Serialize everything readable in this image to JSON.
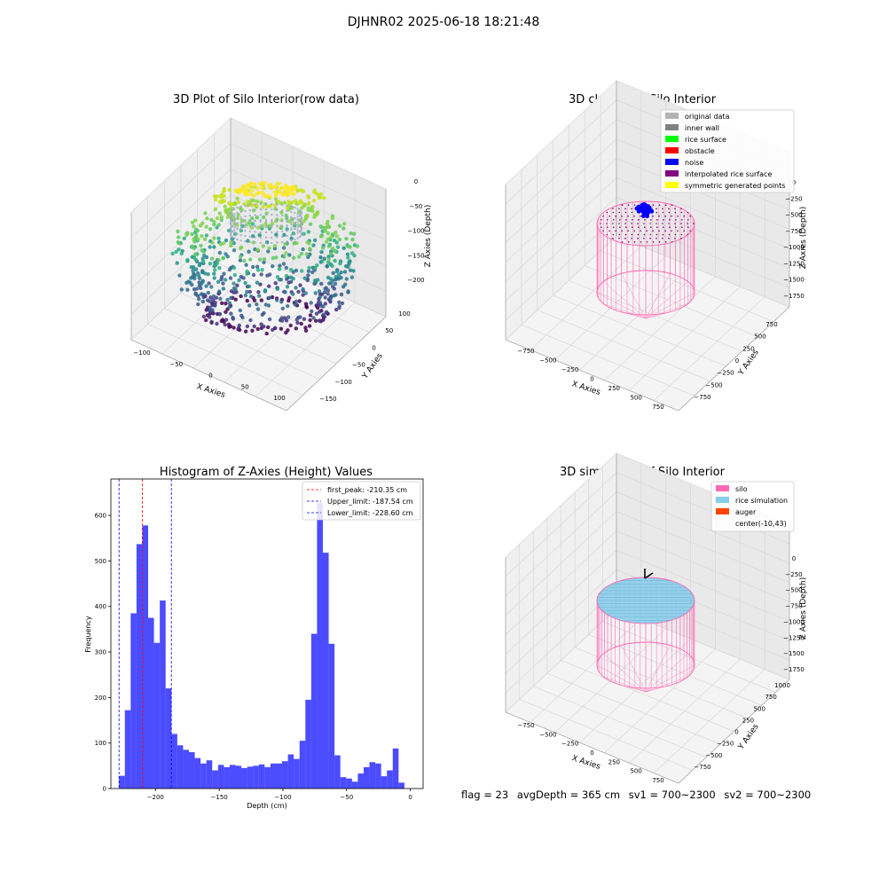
{
  "suptitle": "DJHNR02 2025-06-18 18:21:48",
  "panel1": {
    "title": "3D Plot of Silo Interior(row data)",
    "xlabel": "X Axies",
    "ylabel": "Y Axies",
    "zlabel": "Z Axies (Depth)",
    "xticks": [
      "−100",
      "−50",
      "0",
      "50",
      "100"
    ],
    "yticks": [
      "100",
      "50",
      "0",
      "−50",
      "−100",
      "−150"
    ],
    "zticks": [
      "0",
      "−50",
      "−100",
      "−150",
      "−200"
    ]
  },
  "panel2": {
    "title": "3D classify of Silo Interior",
    "xlabel": "X Axies",
    "ylabel": "Y Axies",
    "zlabel": "Z Axies (Depth)",
    "xticks": [
      "−750",
      "−500",
      "−250",
      "0",
      "250",
      "500",
      "750"
    ],
    "yticks": [
      "750",
      "500",
      "250",
      "0",
      "−250",
      "−500",
      "−750"
    ],
    "zticks": [
      "0",
      "−250",
      "−500",
      "−750",
      "−1000",
      "−1250",
      "−1500",
      "−1750"
    ],
    "legend": [
      {
        "label": "original data",
        "color": "#b3b3b3"
      },
      {
        "label": "inner wall",
        "color": "#808080"
      },
      {
        "label": "rice surface",
        "color": "#00ff00"
      },
      {
        "label": "obstacle",
        "color": "#ff0000"
      },
      {
        "label": "noise",
        "color": "#0000ff"
      },
      {
        "label": "interpolated rice surface",
        "color": "#800080"
      },
      {
        "label": "symmetric generated points",
        "color": "#ffff00"
      }
    ]
  },
  "panel3": {
    "title": "Histogram of Z-Axies (Height) Values",
    "xlabel": "Depth (cm)",
    "ylabel": "Frequency",
    "legend": [
      {
        "label": "first_peak: -210.35 cm",
        "color": "#ff0000"
      },
      {
        "label": "Upper_limit: -187.54 cm",
        "color": "#0000ff"
      },
      {
        "label": "Lower_limit: -228.60 cm",
        "color": "#0000ff"
      }
    ]
  },
  "panel4": {
    "title": "3D simulation of Silo Interior",
    "xlabel": "X Axies",
    "ylabel": "Y Axies",
    "zlabel": "Z Axies (Depth)",
    "xticks": [
      "−750",
      "−500",
      "−250",
      "0",
      "250",
      "500",
      "750"
    ],
    "yticks": [
      "1000",
      "750",
      "500",
      "250",
      "0",
      "−250",
      "−500",
      "−750"
    ],
    "zticks": [
      "0",
      "−250",
      "−500",
      "−750",
      "−1000",
      "−1250",
      "−1500",
      "−1750"
    ],
    "legend": [
      {
        "label": "silo",
        "color": "#ff69b4"
      },
      {
        "label": "rice simulation",
        "color": "#87ceeb"
      },
      {
        "label": "auger",
        "color": "#ff4500"
      },
      {
        "label": "center(-10,43)",
        "color": ""
      }
    ]
  },
  "footer": {
    "flag": "flag = 23",
    "avg_depth": "avgDepth = 365 cm",
    "sv1": "sv1 = 700~2300",
    "sv2": "sv2 = 700~2300"
  },
  "chart_data": [
    {
      "type": "scatter",
      "title": "3D Plot of Silo Interior(row data)",
      "xlabel": "X Axies",
      "ylabel": "Y Axies",
      "zlabel": "Z Axies (Depth)",
      "xlim": [
        -115,
        115
      ],
      "ylim": [
        -155,
        115
      ],
      "zlim": [
        -230,
        0
      ],
      "grid": true
    },
    {
      "type": "scatter",
      "title": "3D classify of Silo Interior",
      "xlabel": "X Axies",
      "ylabel": "Y Axies",
      "zlabel": "Z Axies (Depth)",
      "xlim": [
        -900,
        900
      ],
      "ylim": [
        -900,
        900
      ],
      "zlim": [
        -1850,
        0
      ],
      "legend_position": "top-right",
      "grid": true
    },
    {
      "type": "bar",
      "title": "Histogram of Z-Axies (Height) Values",
      "xlabel": "Depth (cm)",
      "ylabel": "Frequency",
      "xlim": [
        -235,
        10
      ],
      "ylim": [
        0,
        680
      ],
      "xticks": [
        -200,
        -150,
        -100,
        -50,
        0
      ],
      "yticks": [
        0,
        100,
        200,
        300,
        400,
        500,
        600
      ],
      "bin_start": -228.6,
      "bin_width": 4.57,
      "values": [
        28,
        172,
        385,
        537,
        578,
        375,
        320,
        413,
        220,
        120,
        95,
        85,
        80,
        67,
        55,
        62,
        40,
        52,
        47,
        52,
        50,
        45,
        48,
        50,
        53,
        47,
        55,
        55,
        60,
        75,
        65,
        105,
        195,
        340,
        628,
        518,
        318,
        73,
        25,
        22,
        15,
        33,
        47,
        58,
        55,
        27,
        40,
        88,
        13
      ],
      "color": "#0000ff",
      "vlines": [
        {
          "x": -210.35,
          "color": "#ff0000",
          "label": "first_peak: -210.35 cm"
        },
        {
          "x": -187.54,
          "color": "#0000ff",
          "label": "Upper_limit: -187.54 cm"
        },
        {
          "x": -228.6,
          "color": "#0000ff",
          "label": "Lower_limit: -228.60 cm"
        }
      ],
      "legend_position": "top-right"
    },
    {
      "type": "scatter",
      "title": "3D simulation of Silo Interior",
      "xlabel": "X Axies",
      "ylabel": "Y Axies",
      "zlabel": "Z Axies (Depth)",
      "xlim": [
        -900,
        900
      ],
      "ylim": [
        -900,
        1100
      ],
      "zlim": [
        -1850,
        0
      ],
      "legend_position": "top-right",
      "grid": true
    }
  ]
}
